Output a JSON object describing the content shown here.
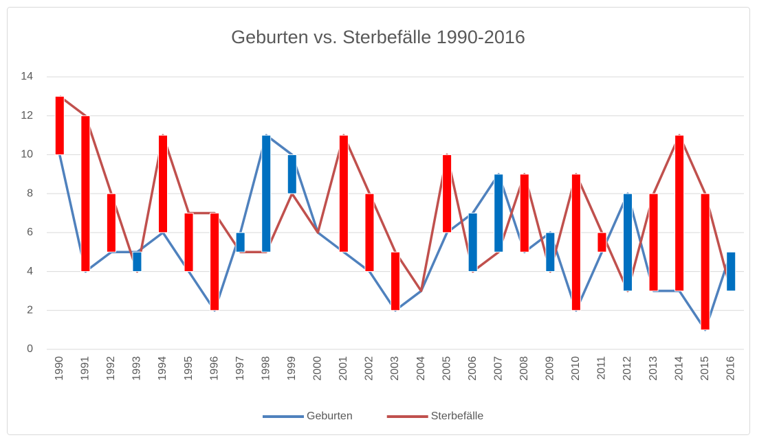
{
  "chart_data": {
    "type": "line",
    "title": "Geburten vs. Sterbefälle 1990-2016",
    "categories": [
      "1990",
      "1991",
      "1992",
      "1993",
      "1994",
      "1995",
      "1996",
      "1997",
      "1998",
      "1999",
      "2000",
      "2001",
      "2002",
      "2003",
      "2004",
      "2005",
      "2006",
      "2007",
      "2008",
      "2009",
      "2010",
      "2011",
      "2012",
      "2013",
      "2014",
      "2015",
      "2016"
    ],
    "series": [
      {
        "name": "Geburten",
        "color": "#4f81bd",
        "values": [
          10,
          4,
          5,
          5,
          6,
          4,
          2,
          6,
          11,
          10,
          6,
          5,
          4,
          2,
          3,
          6,
          7,
          9,
          5,
          6,
          2,
          5,
          8,
          3,
          3,
          1,
          5
        ]
      },
      {
        "name": "Sterbefälle",
        "color": "#c0504d",
        "values": [
          13,
          12,
          8,
          4,
          11,
          7,
          7,
          5,
          5,
          8,
          6,
          11,
          8,
          5,
          3,
          10,
          4,
          5,
          9,
          4,
          9,
          6,
          3,
          8,
          11,
          8,
          3
        ]
      }
    ],
    "up_down_bars": true,
    "up_color": "#ff0000",
    "down_color": "#0070c0",
    "ylim": [
      0,
      14
    ],
    "yticks": [
      0,
      2,
      4,
      6,
      8,
      10,
      12,
      14
    ],
    "grid": true,
    "legend": "bottom"
  }
}
